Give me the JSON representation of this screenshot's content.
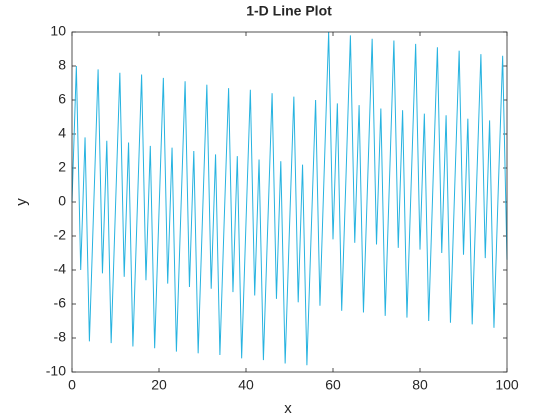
{
  "chart_data": {
    "type": "line",
    "title": "1-D Line Plot",
    "xlabel": "x",
    "ylabel": "y",
    "color": "#27b3e0",
    "x": [
      0,
      1,
      2,
      3,
      4,
      5,
      6,
      7,
      8,
      9,
      10,
      11,
      12,
      13,
      14,
      15,
      16,
      17,
      18,
      19,
      20,
      21,
      22,
      23,
      24,
      25,
      26,
      27,
      28,
      29,
      30,
      31,
      32,
      33,
      34,
      35,
      36,
      37,
      38,
      39,
      40,
      41,
      42,
      43,
      44,
      45,
      46,
      47,
      48,
      49,
      50,
      51,
      52,
      53,
      54,
      55,
      56,
      57,
      58,
      59,
      60,
      61,
      62,
      63,
      64,
      65,
      66,
      67,
      68,
      69,
      70,
      71,
      72,
      73,
      74,
      75,
      76,
      77,
      78,
      79,
      80,
      81,
      82,
      83,
      84,
      85,
      86,
      87,
      88,
      89,
      90,
      91,
      92,
      93,
      94,
      95,
      96,
      97,
      98,
      99,
      100
    ],
    "values": [
      0,
      8.0,
      -4.0,
      3.8,
      -8.2,
      -0.2,
      7.8,
      -4.2,
      3.6,
      -8.3,
      -0.3,
      7.6,
      -4.4,
      3.5,
      -8.5,
      -0.5,
      7.5,
      -4.6,
      3.3,
      -8.6,
      -0.6,
      7.3,
      -4.8,
      3.2,
      -8.8,
      -0.8,
      7.1,
      -5.0,
      3.0,
      -8.9,
      -0.9,
      6.9,
      -5.1,
      2.8,
      -9.0,
      -1.0,
      6.7,
      -5.3,
      2.7,
      -9.2,
      -1.2,
      6.6,
      -5.5,
      2.5,
      -9.3,
      -1.4,
      6.4,
      -5.7,
      2.4,
      -9.5,
      -1.5,
      6.2,
      -5.9,
      2.2,
      -9.6,
      -1.7,
      6.0,
      -6.1,
      2.0,
      10.0,
      -2.2,
      5.8,
      -6.4,
      1.6,
      9.8,
      -2.4,
      5.7,
      -6.5,
      1.5,
      9.6,
      -2.5,
      5.5,
      -6.7,
      1.4,
      9.5,
      -2.7,
      5.4,
      -6.8,
      1.3,
      9.3,
      -2.8,
      5.2,
      -7.0,
      1.2,
      9.1,
      -3.0,
      5.1,
      -7.1,
      1.0,
      8.9,
      -3.1,
      4.9,
      -7.2,
      0.9,
      8.7,
      -3.3,
      4.8,
      -7.4,
      0.8,
      8.6,
      -3.4
    ],
    "xlim": [
      0,
      100
    ],
    "xticks": [
      0,
      20,
      40,
      60,
      80,
      100
    ],
    "ylim": [
      -10,
      10
    ],
    "yticks": [
      -10,
      -8,
      -6,
      -4,
      -2,
      0,
      2,
      4,
      6,
      8,
      10
    ]
  }
}
